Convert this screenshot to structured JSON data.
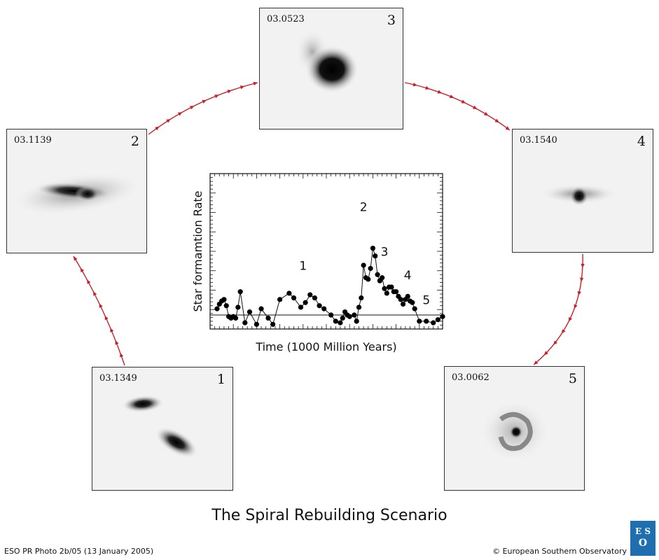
{
  "colors": {
    "arrow": "#c8202a",
    "galaxy": "#111111",
    "panel_bg": "#f2f2f2"
  },
  "panels": [
    {
      "id": "03.1349",
      "number": "1"
    },
    {
      "id": "03.1139",
      "number": "2"
    },
    {
      "id": "03.0523",
      "number": "3"
    },
    {
      "id": "03.1540",
      "number": "4"
    },
    {
      "id": "03.0062",
      "number": "5"
    }
  ],
  "chart_data": {
    "type": "line",
    "xlabel": "Time (1000 Million Years)",
    "ylabel": "Star formamtion Rate",
    "ylim": [
      0,
      10
    ],
    "xlim": [
      0,
      100
    ],
    "baseline": 0.9,
    "annotations": [
      {
        "text": "1",
        "x": 40,
        "y": 3.8
      },
      {
        "text": "2",
        "x": 66,
        "y": 7.6
      },
      {
        "text": "3",
        "x": 75,
        "y": 4.7
      },
      {
        "text": "4",
        "x": 85,
        "y": 3.2
      },
      {
        "text": "5",
        "x": 93,
        "y": 1.6
      }
    ],
    "series": [
      {
        "x": [
          3,
          4,
          5,
          6,
          7,
          8,
          9,
          10,
          11,
          12,
          13,
          15,
          17,
          20,
          22,
          25,
          27,
          30,
          34,
          36,
          39,
          41,
          43,
          45,
          47,
          49,
          52,
          54,
          56,
          57,
          58,
          59,
          60,
          62,
          63,
          64,
          65,
          66,
          67,
          68,
          69,
          70,
          71,
          72,
          73,
          74,
          75,
          76,
          77,
          78,
          79,
          80,
          81,
          82,
          83,
          84,
          85,
          86,
          87,
          88,
          90,
          93,
          96,
          98,
          100
        ],
        "y": [
          1.3,
          1.6,
          1.8,
          1.9,
          1.5,
          0.8,
          0.7,
          0.8,
          0.7,
          1.4,
          2.4,
          0.4,
          1.1,
          0.3,
          1.3,
          0.7,
          0.3,
          1.9,
          2.3,
          2.0,
          1.4,
          1.7,
          2.2,
          2.0,
          1.5,
          1.3,
          0.9,
          0.5,
          0.4,
          0.7,
          1.1,
          0.9,
          0.8,
          0.9,
          0.5,
          1.4,
          2.0,
          4.1,
          3.3,
          3.2,
          3.9,
          5.2,
          4.7,
          3.5,
          3.1,
          3.3,
          2.6,
          2.3,
          2.7,
          2.7,
          2.4,
          2.4,
          2.1,
          1.9,
          1.6,
          1.9,
          2.1,
          1.8,
          1.7,
          1.3,
          0.5,
          0.5,
          0.4,
          0.6,
          0.8
        ]
      }
    ]
  },
  "caption": {
    "title": "The Spiral Rebuilding Scenario",
    "credit": "ESO PR Photo 2b/05 (13 January 2005)",
    "copyright": "© European Southern Observatory",
    "logo_text": "ESO"
  }
}
